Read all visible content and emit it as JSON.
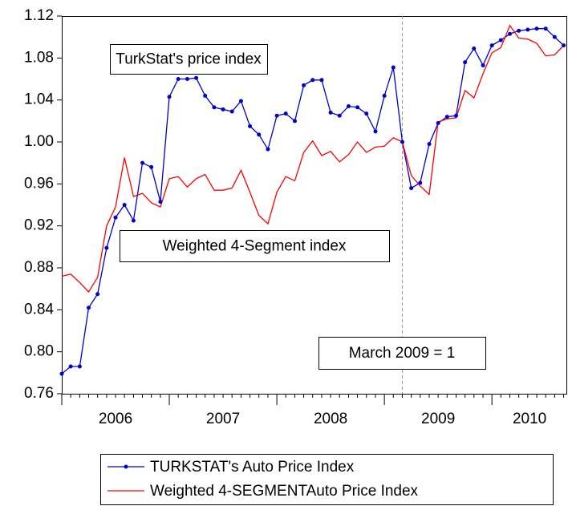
{
  "chart_data": {
    "type": "line",
    "x": [
      2006.0,
      2006.083,
      2006.167,
      2006.25,
      2006.333,
      2006.417,
      2006.5,
      2006.583,
      2006.667,
      2006.75,
      2006.833,
      2006.917,
      2007.0,
      2007.083,
      2007.167,
      2007.25,
      2007.333,
      2007.417,
      2007.5,
      2007.583,
      2007.667,
      2007.75,
      2007.833,
      2007.917,
      2008.0,
      2008.083,
      2008.167,
      2008.25,
      2008.333,
      2008.417,
      2008.5,
      2008.583,
      2008.667,
      2008.75,
      2008.833,
      2008.917,
      2009.0,
      2009.083,
      2009.167,
      2009.25,
      2009.333,
      2009.417,
      2009.5,
      2009.583,
      2009.667,
      2009.75,
      2009.833,
      2009.917,
      2010.0,
      2010.083,
      2010.167,
      2010.25,
      2010.333,
      2010.417,
      2010.5,
      2010.583,
      2010.667
    ],
    "series": [
      {
        "name": "TURKSTAT's Auto Price Index",
        "color": "#0000cc",
        "markers": true,
        "values": [
          0.779,
          0.786,
          0.786,
          0.842,
          0.855,
          0.899,
          0.928,
          0.94,
          0.925,
          0.98,
          0.976,
          0.943,
          1.043,
          1.06,
          1.06,
          1.061,
          1.044,
          1.033,
          1.031,
          1.029,
          1.039,
          1.015,
          1.007,
          0.993,
          1.025,
          1.027,
          1.02,
          1.054,
          1.059,
          1.059,
          1.028,
          1.025,
          1.034,
          1.033,
          1.027,
          1.01,
          1.044,
          1.071,
          1.0,
          0.956,
          0.961,
          0.998,
          1.018,
          1.024,
          1.025,
          1.076,
          1.089,
          1.073,
          1.092,
          1.097,
          1.103,
          1.106,
          1.107,
          1.108,
          1.108,
          1.1,
          1.092
        ]
      },
      {
        "name": "Weighted 4-SEGMENTAuto  Price Index",
        "color": "#ff0000",
        "markers": false,
        "values": [
          0.872,
          0.874,
          0.866,
          0.857,
          0.871,
          0.92,
          0.938,
          0.985,
          0.948,
          0.951,
          0.942,
          0.938,
          0.965,
          0.967,
          0.957,
          0.965,
          0.969,
          0.954,
          0.954,
          0.956,
          0.973,
          0.952,
          0.93,
          0.922,
          0.952,
          0.967,
          0.963,
          0.99,
          1.001,
          0.987,
          0.991,
          0.981,
          0.988,
          1.0,
          0.99,
          0.995,
          0.996,
          1.004,
          1.0,
          0.968,
          0.958,
          0.95,
          1.019,
          1.022,
          1.023,
          1.049,
          1.042,
          1.065,
          1.085,
          1.09,
          1.111,
          1.099,
          1.098,
          1.094,
          1.082,
          1.083,
          1.092
        ]
      }
    ],
    "xlim": [
      2006,
      2010.7
    ],
    "xticks": [
      {
        "value": 2006.5,
        "label": "2006"
      },
      {
        "value": 2007.5,
        "label": "2007"
      },
      {
        "value": 2008.5,
        "label": "2008"
      },
      {
        "value": 2009.5,
        "label": "2009"
      },
      {
        "value": 2010.35,
        "label": "2010"
      }
    ],
    "ylim": [
      0.76,
      1.12
    ],
    "yticks": [
      0.76,
      0.8,
      0.84,
      0.88,
      0.92,
      0.96,
      1,
      1.04,
      1.08,
      1.12
    ],
    "ytick_labels": [
      "0.76",
      "0.80",
      "0.84",
      "0.88",
      "0.92",
      "0.96",
      "1.00",
      "1.04",
      "1.08",
      "1.12"
    ],
    "vline": 2009.167,
    "annotations": [
      "TurkStat's price index",
      "Weighted 4-Segment index",
      "March 2009 = 1"
    ],
    "grid": false
  }
}
